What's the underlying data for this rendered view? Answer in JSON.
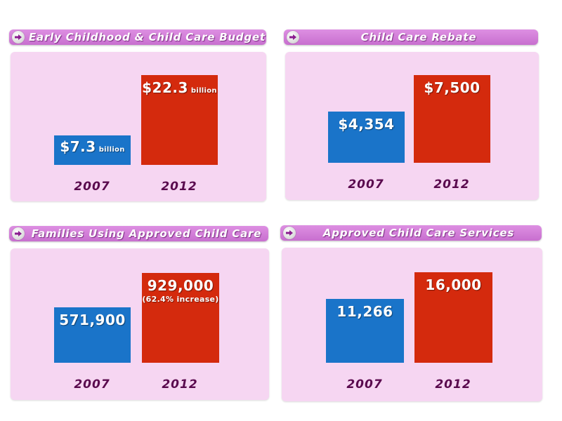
{
  "colors": {
    "bar_2007": "#1a74c9",
    "bar_2012": "#d42a0d",
    "panel_bg": "#f6d6f2",
    "header_bg": "#d77fdd",
    "year_text": "#5a0a4e"
  },
  "icons": {
    "header_bullet": "arrow-right-circle-icon"
  },
  "chart_data": [
    {
      "type": "bar",
      "title": "Early Childhood & Child Care Budget",
      "categories": [
        "2007",
        "2012"
      ],
      "values": [
        7.3,
        22.3
      ],
      "value_labels": [
        "$7.3",
        "$22.3"
      ],
      "value_units": [
        "billion",
        "billion"
      ],
      "value_notes": [
        "",
        ""
      ]
    },
    {
      "type": "bar",
      "title": "Child Care Rebate",
      "categories": [
        "2007",
        "2012"
      ],
      "values": [
        4354,
        7500
      ],
      "value_labels": [
        "$4,354",
        "$7,500"
      ],
      "value_units": [
        "",
        ""
      ],
      "value_notes": [
        "",
        ""
      ]
    },
    {
      "type": "bar",
      "title": "Families Using Approved Child Care",
      "categories": [
        "2007",
        "2012"
      ],
      "values": [
        571900,
        929000
      ],
      "value_labels": [
        "571,900",
        "929,000"
      ],
      "value_units": [
        "",
        ""
      ],
      "value_notes": [
        "",
        "(62.4% increase)"
      ]
    },
    {
      "type": "bar",
      "title": "Approved Child Care Services",
      "categories": [
        "2007",
        "2012"
      ],
      "values": [
        11266,
        16000
      ],
      "value_labels": [
        "11,266",
        "16,000"
      ],
      "value_units": [
        "",
        ""
      ],
      "value_notes": [
        "",
        ""
      ]
    }
  ]
}
